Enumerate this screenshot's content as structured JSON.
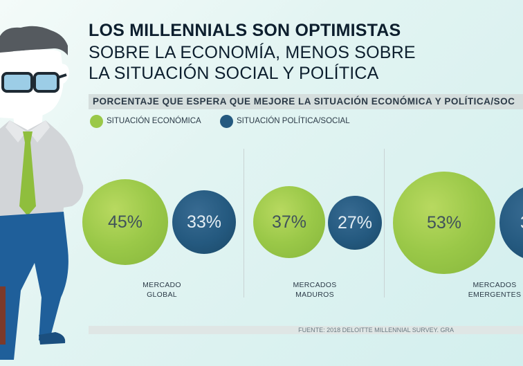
{
  "title": {
    "line1": "LOS MILLENNIALS SON OPTIMISTAS",
    "line2": "SOBRE LA ECONOMÍA, MENOS SOBRE",
    "line3": "LA SITUACIÓN SOCIAL Y POLÍTICA"
  },
  "subtitle": "PORCENTAJE QUE ESPERA QUE MEJORE LA SITUACIÓN ECONÓMICA Y POLÍTICA/SOC",
  "footer": "FUENTE: 2018 DELOITTE MILLENNIAL SURVEY. GRA",
  "colors": {
    "economica": "#9ac848",
    "politica": "#24597f"
  },
  "chart_data": {
    "type": "bubble",
    "title": "LOS MILLENNIALS SON OPTIMISTAS SOBRE LA ECONOMÍA, MENOS SOBRE LA SITUACIÓN SOCIAL Y POLÍTICA",
    "legend": [
      "SITUACIÓN ECONÓMICA",
      "SITUACIÓN POLÍTICA/SOCIAL"
    ],
    "groups": [
      {
        "label_line1": "MERCADO",
        "label_line2": "GLOBAL",
        "economica": 45,
        "politica": 33,
        "economica_label": "45%",
        "politica_label": "33%"
      },
      {
        "label_line1": "MERCADOS",
        "label_line2": "MADUROS",
        "economica": 37,
        "politica": 27,
        "economica_label": "37%",
        "politica_label": "27%"
      },
      {
        "label_line1": "MERCADOS",
        "label_line2": "EMERGENTES",
        "economica": 53,
        "politica": null,
        "economica_label": "53%",
        "politica_label": "3"
      }
    ]
  }
}
